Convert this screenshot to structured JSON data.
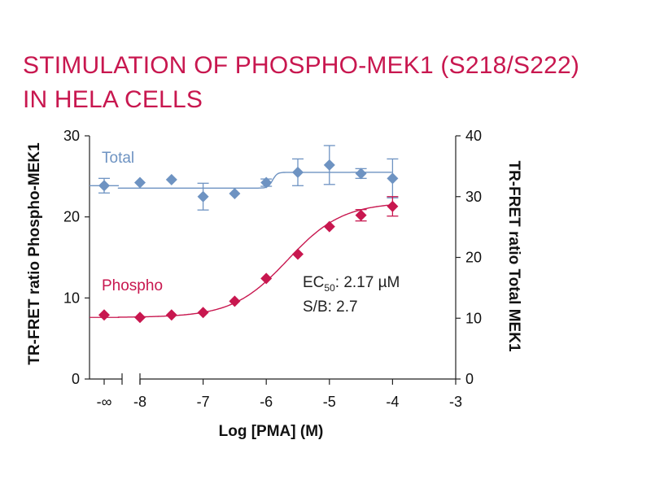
{
  "title": {
    "line1": "STIMULATION OF PHOSPHO-MEK1 (S218/S222)",
    "line2": "IN HELA CELLS"
  },
  "chart_data": {
    "type": "scatter",
    "xlabel": "Log [PMA] (M)",
    "ylabel_left": "TR-FRET ratio Phospho-MEK1",
    "ylabel_right": "TR-FRET ratio Total MEK1",
    "x_ticks": [
      "-∞",
      "-8",
      "-7",
      "-6",
      "-5",
      "-4",
      "-3"
    ],
    "y_left_ticks": [
      "0",
      "10",
      "20",
      "30"
    ],
    "y_right_ticks": [
      "0",
      "10",
      "20",
      "30",
      "40"
    ],
    "xlim": [
      -8,
      -3
    ],
    "ylim_left": [
      0,
      30
    ],
    "ylim_right": [
      0,
      40
    ],
    "axis_break": true,
    "grid": false,
    "series": [
      {
        "name": "Total",
        "axis": "right",
        "color": "#6e93c2",
        "marker": "diamond",
        "points": [
          {
            "x": "-∞",
            "y": 31.8,
            "err": 1.2
          },
          {
            "x": -8.0,
            "y": 32.3,
            "err": 0
          },
          {
            "x": -7.5,
            "y": 32.8,
            "err": 0
          },
          {
            "x": -7.0,
            "y": 30.0,
            "err": 2.2
          },
          {
            "x": -6.5,
            "y": 30.5,
            "err": 0
          },
          {
            "x": -6.0,
            "y": 32.3,
            "err": 0.6
          },
          {
            "x": -5.5,
            "y": 34.0,
            "err": 2.2
          },
          {
            "x": -5.0,
            "y": 35.2,
            "err": 3.2
          },
          {
            "x": -4.5,
            "y": 33.8,
            "err": 0.8
          },
          {
            "x": -4.0,
            "y": 33.0,
            "err": 3.2
          }
        ],
        "fit": {
          "bottom": 31.4,
          "top": 34.0,
          "log_ec50": -5.9
        }
      },
      {
        "name": "Phospho",
        "axis": "left",
        "color": "#c8174f",
        "marker": "diamond",
        "points": [
          {
            "x": "-∞",
            "y": 7.9,
            "err": 0
          },
          {
            "x": -8.0,
            "y": 7.6,
            "err": 0
          },
          {
            "x": -7.5,
            "y": 7.9,
            "err": 0
          },
          {
            "x": -7.0,
            "y": 8.2,
            "err": 0
          },
          {
            "x": -6.5,
            "y": 9.6,
            "err": 0
          },
          {
            "x": -6.0,
            "y": 12.4,
            "err": 0
          },
          {
            "x": -5.5,
            "y": 15.4,
            "err": 0
          },
          {
            "x": -5.0,
            "y": 18.8,
            "err": 0
          },
          {
            "x": -4.5,
            "y": 20.2,
            "err": 0.7
          },
          {
            "x": -4.0,
            "y": 21.3,
            "err": 1.2
          }
        ],
        "fit": {
          "bottom": 7.6,
          "top": 21.8,
          "log_ec50": -5.66,
          "hill": 1.0
        }
      }
    ],
    "annotations": {
      "ec50_prefix": "EC",
      "ec50_sub": "50",
      "ec50_value": ": 2.17 µM",
      "sb": "S/B: 2.7"
    }
  }
}
